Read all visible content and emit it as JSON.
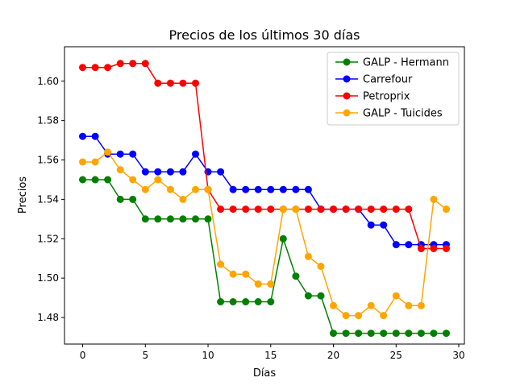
{
  "chart_data": {
    "type": "line",
    "title": "Precios de los últimos 30 días",
    "xlabel": "Días",
    "ylabel": "Precios",
    "xlim": [
      -1.45,
      30.45
    ],
    "ylim": [
      1.4665,
      1.6175
    ],
    "xticks": [
      0,
      5,
      10,
      15,
      20,
      25,
      30
    ],
    "yticks": [
      1.48,
      1.5,
      1.52,
      1.54,
      1.56,
      1.58,
      1.6
    ],
    "ytick_labels": [
      "1.48",
      "1.50",
      "1.52",
      "1.54",
      "1.56",
      "1.58",
      "1.60"
    ],
    "grid": false,
    "legend_position": "top-right",
    "x": [
      0,
      1,
      2,
      3,
      4,
      5,
      6,
      7,
      8,
      9,
      10,
      11,
      12,
      13,
      14,
      15,
      16,
      17,
      18,
      19,
      20,
      21,
      22,
      23,
      24,
      25,
      26,
      27,
      28,
      29
    ],
    "series": [
      {
        "name": "GALP - Hermann",
        "color": "#008000",
        "values": [
          1.55,
          1.55,
          1.55,
          1.54,
          1.54,
          1.53,
          1.53,
          1.53,
          1.53,
          1.53,
          1.53,
          1.488,
          1.488,
          1.488,
          1.488,
          1.488,
          1.52,
          1.501,
          1.491,
          1.491,
          1.472,
          1.472,
          1.472,
          1.472,
          1.472,
          1.472,
          1.472,
          1.472,
          1.472,
          1.472
        ]
      },
      {
        "name": "Carrefour",
        "color": "#0000ff",
        "values": [
          1.572,
          1.572,
          1.563,
          1.563,
          1.563,
          1.554,
          1.554,
          1.554,
          1.554,
          1.563,
          1.554,
          1.554,
          1.545,
          1.545,
          1.545,
          1.545,
          1.545,
          1.545,
          1.545,
          1.535,
          1.535,
          1.535,
          1.535,
          1.527,
          1.527,
          1.517,
          1.517,
          1.517,
          1.517,
          1.517
        ]
      },
      {
        "name": "Petroprix",
        "color": "#ff0000",
        "values": [
          1.607,
          1.607,
          1.607,
          1.609,
          1.609,
          1.609,
          1.599,
          1.599,
          1.599,
          1.599,
          1.545,
          1.535,
          1.535,
          1.535,
          1.535,
          1.535,
          1.535,
          1.535,
          1.535,
          1.535,
          1.535,
          1.535,
          1.535,
          1.535,
          1.535,
          1.535,
          1.535,
          1.515,
          1.515,
          1.515
        ]
      },
      {
        "name": "GALP - Tuicides",
        "color": "#ffa500",
        "values": [
          1.559,
          1.559,
          1.564,
          1.555,
          1.55,
          1.545,
          1.55,
          1.545,
          1.54,
          1.545,
          1.545,
          1.507,
          1.502,
          1.502,
          1.497,
          1.497,
          1.535,
          1.535,
          1.511,
          1.506,
          1.486,
          1.481,
          1.481,
          1.486,
          1.481,
          1.491,
          1.486,
          1.486,
          1.54,
          1.535
        ]
      }
    ]
  }
}
